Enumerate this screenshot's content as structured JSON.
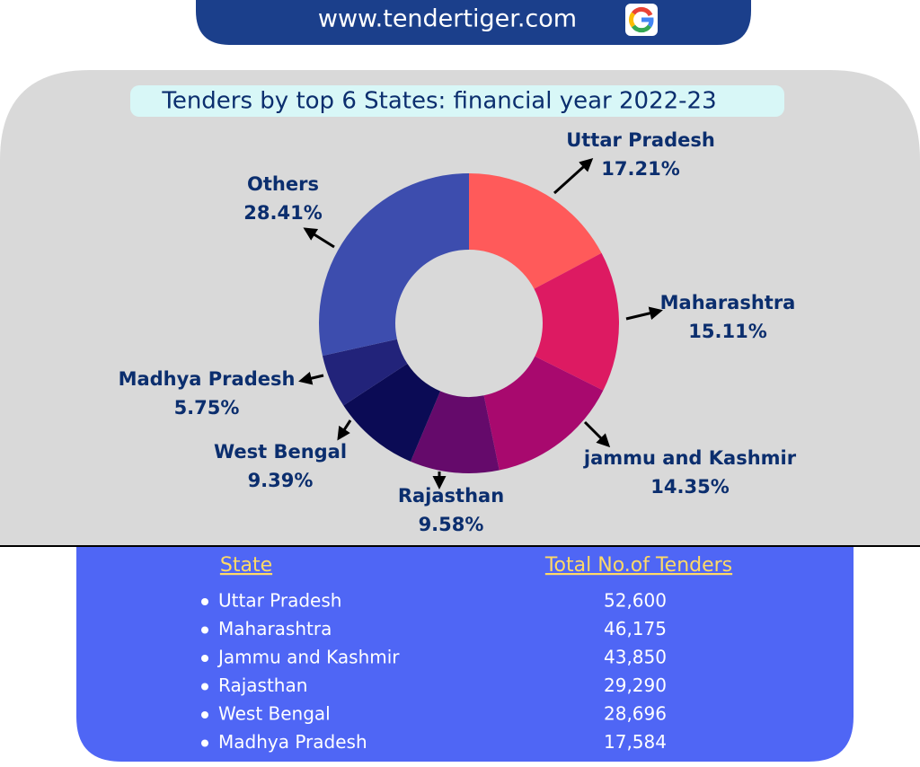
{
  "header": {
    "site": "www.tendertiger.com"
  },
  "chart_data": {
    "type": "donut",
    "title": "Tenders by top 6 States: financial year 2022-23",
    "categories": [
      "Uttar Pradesh",
      "Maharashtra",
      "jammu and Kashmir",
      "Rajasthan",
      "West Bengal",
      "Madhya Pradesh",
      "Others"
    ],
    "values": [
      17.21,
      15.11,
      14.35,
      9.58,
      9.39,
      5.75,
      28.41
    ],
    "value_labels": [
      "17.21%",
      "15.11%",
      "14.35%",
      "9.58%",
      "9.39%",
      "5.75%",
      "28.41%"
    ],
    "colors": [
      "#ff5a5a",
      "#dd1a62",
      "#a8096e",
      "#650a6b",
      "#0b0b55",
      "#22237a",
      "#3d4dae"
    ]
  },
  "table": {
    "header": [
      "State",
      "Total No.of Tenders"
    ],
    "rows": [
      [
        "Uttar Pradesh",
        "52,600"
      ],
      [
        "Maharashtra",
        "46,175"
      ],
      [
        "Jammu and Kashmir",
        "43,850"
      ],
      [
        "Rajasthan",
        "29,290"
      ],
      [
        "West Bengal",
        "28,696"
      ],
      [
        "Madhya Pradesh",
        "17,584"
      ]
    ]
  }
}
